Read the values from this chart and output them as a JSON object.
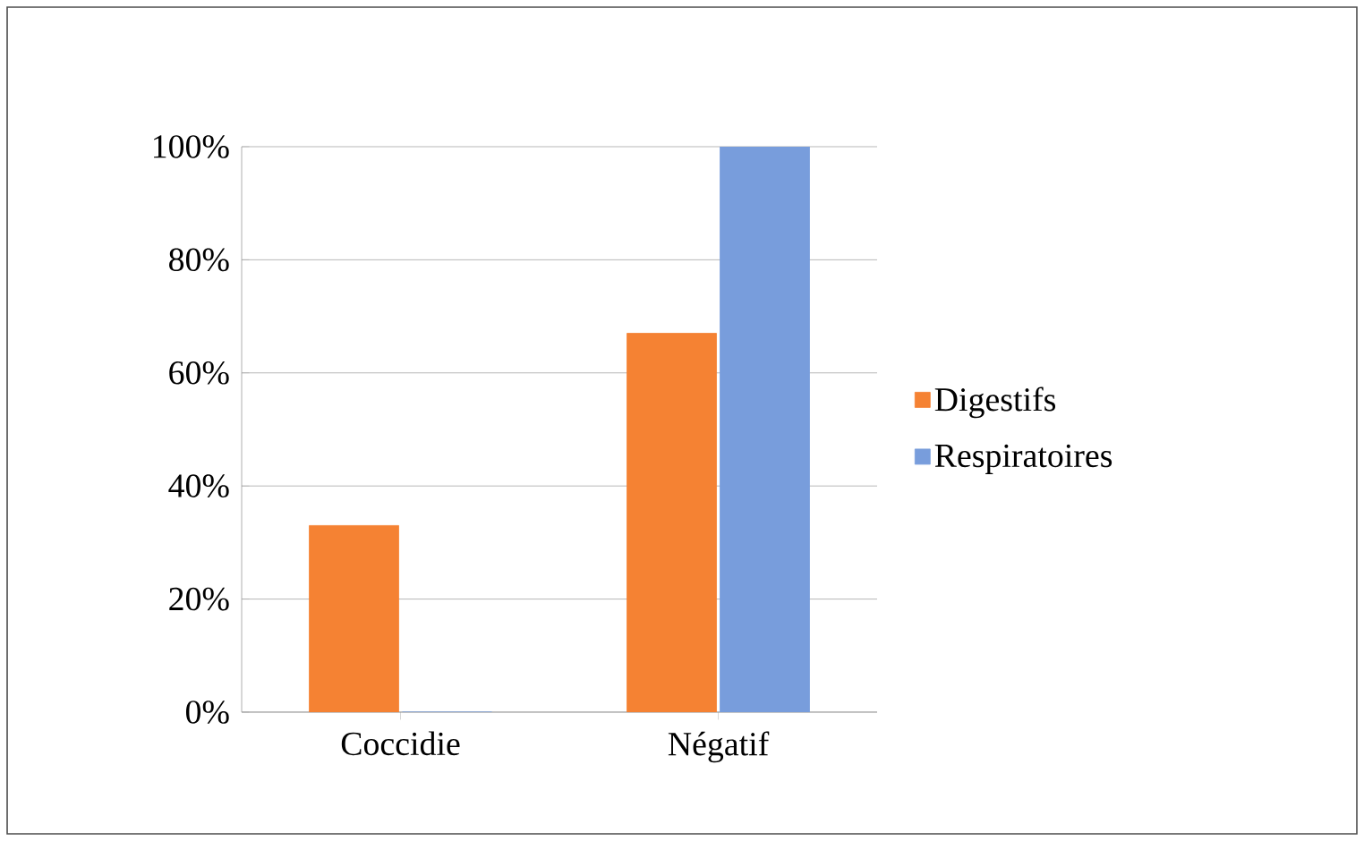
{
  "chart_data": {
    "type": "bar",
    "categories": [
      "Coccidie",
      "Négatif"
    ],
    "series": [
      {
        "name": "Digestifs",
        "color": "#f58233",
        "values": [
          33,
          67
        ]
      },
      {
        "name": "Respiratoires",
        "color": "#789ddc",
        "values": [
          0,
          100
        ]
      }
    ],
    "ylim": [
      0,
      100
    ],
    "yticks": [
      {
        "value": 0,
        "label": "0%"
      },
      {
        "value": 20,
        "label": "20%"
      },
      {
        "value": 40,
        "label": "40%"
      },
      {
        "value": 60,
        "label": "60%"
      },
      {
        "value": 80,
        "label": "80%"
      },
      {
        "value": 100,
        "label": "100%"
      }
    ],
    "grid": "y",
    "legend": "right"
  }
}
